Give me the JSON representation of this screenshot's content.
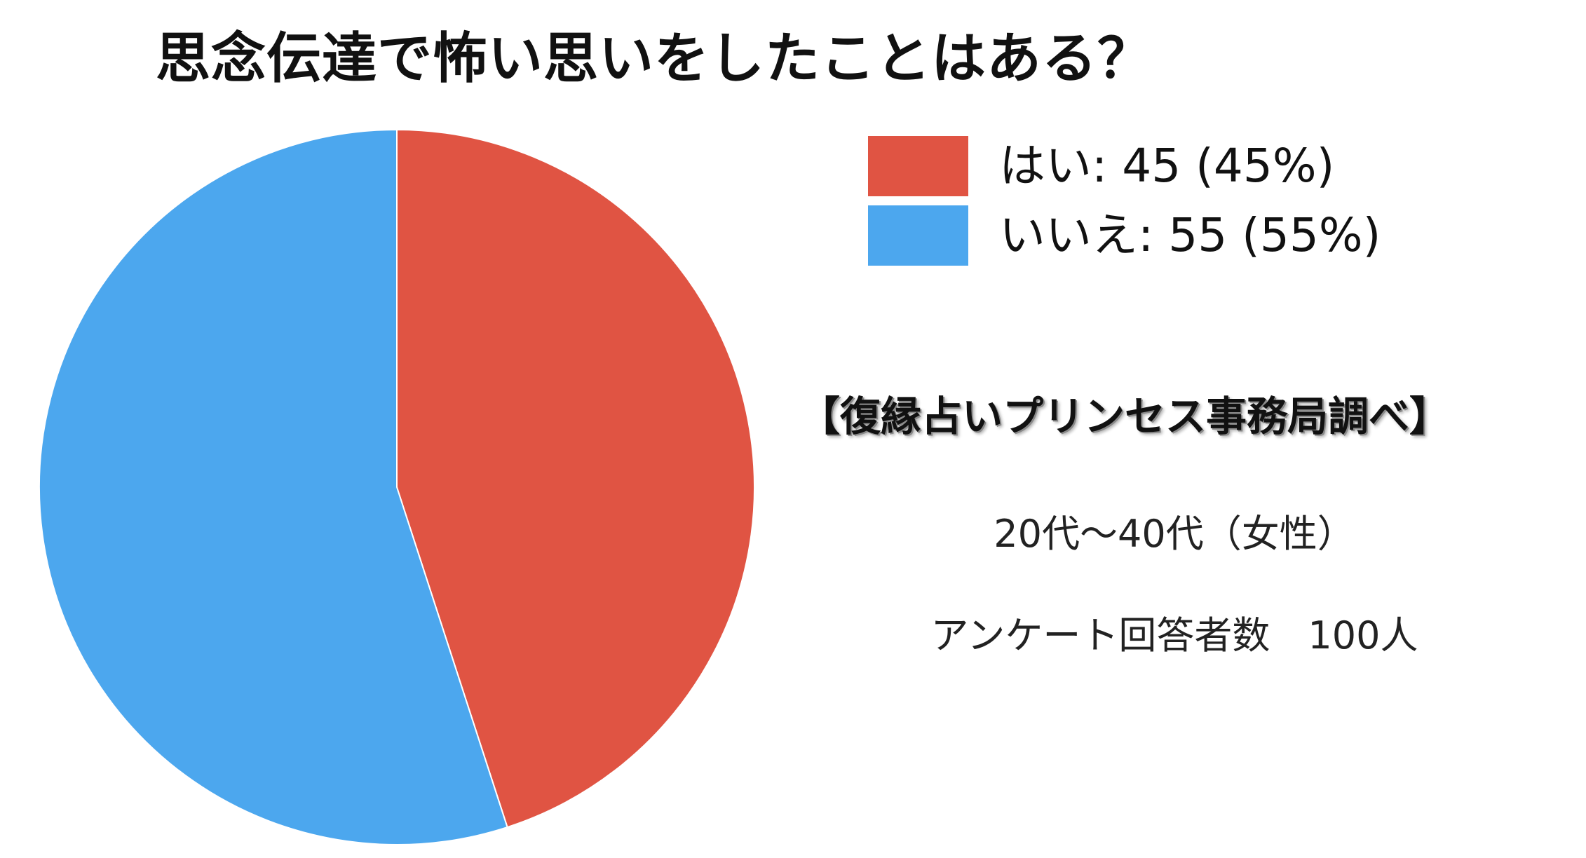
{
  "chart_data": {
    "type": "pie",
    "title": "思念伝達で怖い思いをしたことはある？",
    "slices": [
      {
        "label": "はい",
        "value": 45,
        "percent": 45,
        "color": "#e05443",
        "legend": "はい: 45 (45%)"
      },
      {
        "label": "いいえ",
        "value": 55,
        "percent": 55,
        "color": "#4ca7ee",
        "legend": "いいえ: 55 (55%)"
      }
    ],
    "start_angle": "top",
    "direction": "clockwise",
    "legend_position": "right"
  },
  "annotations": {
    "source": "【復縁占いプリンセス事務局調べ】",
    "age_group": "20代〜40代（女性）",
    "respondents": "アンケート回答者数　100人"
  }
}
